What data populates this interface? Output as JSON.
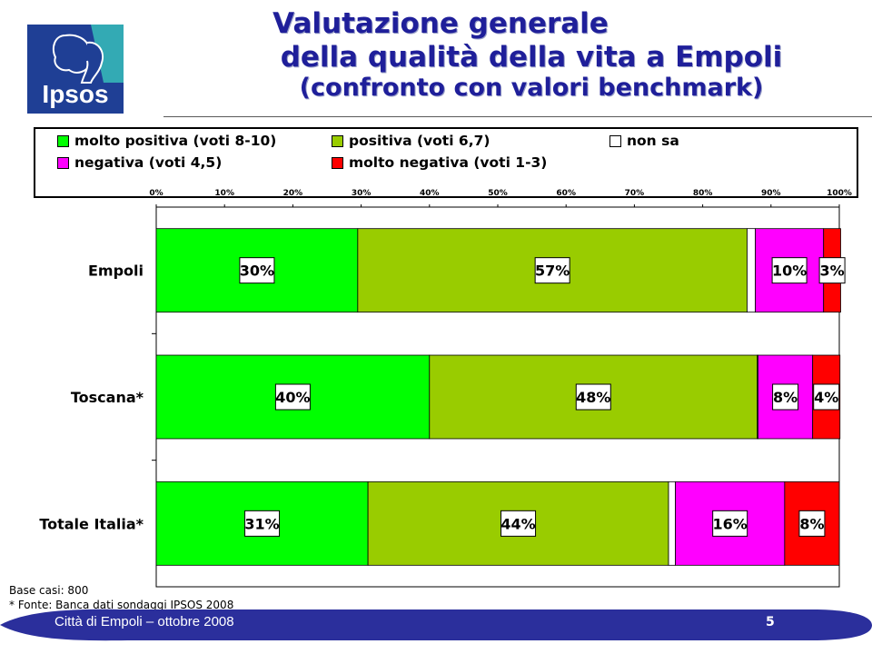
{
  "title": {
    "line1": "Valutazione generale",
    "line2": "della qualità della vita a Empoli",
    "line3": "(confronto con valori benchmark)"
  },
  "logo": {
    "text": "Ipsos",
    "icon": "ipsos-head-logo",
    "bg": "#1f3f95",
    "accent": "#33aab4"
  },
  "chart_data": {
    "type": "bar",
    "orientation": "horizontal",
    "stacked": true,
    "categories": [
      "Empoli",
      "Toscana*",
      "Totale Italia*"
    ],
    "xlim": [
      0,
      100
    ],
    "xticks": [
      "0%",
      "10%",
      "20%",
      "30%",
      "40%",
      "50%",
      "60%",
      "70%",
      "80%",
      "90%",
      "100%"
    ],
    "legend_position": "top",
    "series": [
      {
        "name": "molto positiva (voti 8-10)",
        "color": "#00ff00",
        "values": [
          29.5,
          40,
          31
        ],
        "labels": [
          "30%",
          "40%",
          "31%"
        ]
      },
      {
        "name": "positiva (voti 6,7)",
        "color": "#99cc00",
        "values": [
          57,
          48,
          44
        ],
        "labels": [
          "57%",
          "48%",
          "44%"
        ]
      },
      {
        "name": "non sa",
        "color": "#ffffff",
        "values": [
          1.2,
          0.1,
          1
        ],
        "labels": [
          "",
          "",
          ""
        ]
      },
      {
        "name": "negativa (voti 4,5)",
        "color": "#ff00ff",
        "values": [
          10,
          8,
          16
        ],
        "labels": [
          "10%",
          "8%",
          "16%"
        ]
      },
      {
        "name": "molto negativa (voti 1-3)",
        "color": "#ff0000",
        "values": [
          2.5,
          4,
          8
        ],
        "labels": [
          "3%",
          "4%",
          "8%"
        ]
      }
    ]
  },
  "footnotes": {
    "base": "Base casi: 800",
    "source": "* Fonte: Banca dati sondaggi IPSOS 2008"
  },
  "footer": {
    "text": "Città di Empoli – ottobre 2008",
    "page": "5",
    "band_color": "#2b2f9c"
  }
}
